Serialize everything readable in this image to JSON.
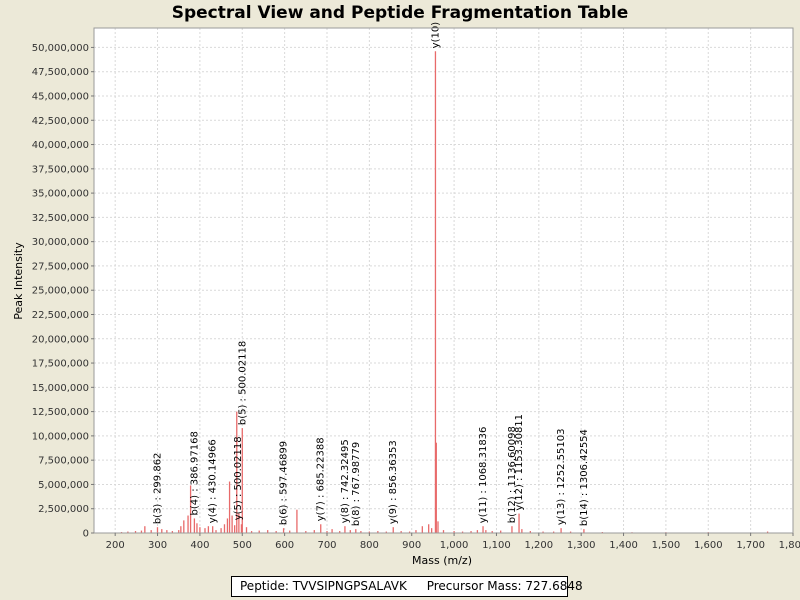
{
  "chart_data": {
    "type": "spectrum",
    "title": "Spectral View and Peptide Fragmentation Table",
    "xlabel": "Mass (m/z)",
    "ylabel": "Peak Intensity",
    "xlim": [
      150,
      1800
    ],
    "ylim": [
      0,
      52000000
    ],
    "grid": true,
    "series_color": "#e86a6a",
    "x_ticks": [
      {
        "value": 200,
        "label": "200"
      },
      {
        "value": 300,
        "label": "300"
      },
      {
        "value": 400,
        "label": "400"
      },
      {
        "value": 500,
        "label": "500"
      },
      {
        "value": 600,
        "label": "600"
      },
      {
        "value": 700,
        "label": "700"
      },
      {
        "value": 800,
        "label": "800"
      },
      {
        "value": 900,
        "label": "900"
      },
      {
        "value": 1000,
        "label": "1,000"
      },
      {
        "value": 1100,
        "label": "1,100"
      },
      {
        "value": 1200,
        "label": "1,200"
      },
      {
        "value": 1300,
        "label": "1,300"
      },
      {
        "value": 1400,
        "label": "1,400"
      },
      {
        "value": 1500,
        "label": "1,500"
      },
      {
        "value": 1600,
        "label": "1,600"
      },
      {
        "value": 1700,
        "label": "1,700"
      },
      {
        "value": 1800,
        "label": "1,800"
      }
    ],
    "y_ticks": [
      {
        "value": 0,
        "label": "0"
      },
      {
        "value": 2500000,
        "label": "2,500,000"
      },
      {
        "value": 5000000,
        "label": "5,000,000"
      },
      {
        "value": 7500000,
        "label": "7,500,000"
      },
      {
        "value": 10000000,
        "label": "10,000,000"
      },
      {
        "value": 12500000,
        "label": "12,500,000"
      },
      {
        "value": 15000000,
        "label": "15,000,000"
      },
      {
        "value": 17500000,
        "label": "17,500,000"
      },
      {
        "value": 20000000,
        "label": "20,000,000"
      },
      {
        "value": 22500000,
        "label": "22,500,000"
      },
      {
        "value": 25000000,
        "label": "25,000,000"
      },
      {
        "value": 27500000,
        "label": "27,500,000"
      },
      {
        "value": 30000000,
        "label": "30,000,000"
      },
      {
        "value": 32500000,
        "label": "32,500,000"
      },
      {
        "value": 35000000,
        "label": "35,000,000"
      },
      {
        "value": 37500000,
        "label": "37,500,000"
      },
      {
        "value": 40000000,
        "label": "40,000,000"
      },
      {
        "value": 42500000,
        "label": "42,500,000"
      },
      {
        "value": 45000000,
        "label": "45,000,000"
      },
      {
        "value": 47500000,
        "label": "47,500,000"
      },
      {
        "value": 50000000,
        "label": "50,000,000"
      }
    ],
    "peaks": [
      {
        "mz": 215,
        "intensity": 100000
      },
      {
        "mz": 230,
        "intensity": 150000
      },
      {
        "mz": 248,
        "intensity": 200000
      },
      {
        "mz": 262,
        "intensity": 250000
      },
      {
        "mz": 270,
        "intensity": 700000
      },
      {
        "mz": 285,
        "intensity": 300000
      },
      {
        "mz": 299.86,
        "intensity": 600000
      },
      {
        "mz": 310,
        "intensity": 400000
      },
      {
        "mz": 322,
        "intensity": 300000
      },
      {
        "mz": 335,
        "intensity": 200000
      },
      {
        "mz": 350,
        "intensity": 300000
      },
      {
        "mz": 355,
        "intensity": 700000
      },
      {
        "mz": 362,
        "intensity": 1300000
      },
      {
        "mz": 372,
        "intensity": 1800000
      },
      {
        "mz": 378,
        "intensity": 4900000
      },
      {
        "mz": 386.97,
        "intensity": 1500000
      },
      {
        "mz": 393,
        "intensity": 1000000
      },
      {
        "mz": 400,
        "intensity": 600000
      },
      {
        "mz": 412,
        "intensity": 500000
      },
      {
        "mz": 420,
        "intensity": 700000
      },
      {
        "mz": 430.15,
        "intensity": 700000
      },
      {
        "mz": 438,
        "intensity": 300000
      },
      {
        "mz": 450,
        "intensity": 500000
      },
      {
        "mz": 458,
        "intensity": 900000
      },
      {
        "mz": 465,
        "intensity": 1500000
      },
      {
        "mz": 470,
        "intensity": 5300000
      },
      {
        "mz": 476,
        "intensity": 1800000
      },
      {
        "mz": 482,
        "intensity": 800000
      },
      {
        "mz": 487,
        "intensity": 12500000
      },
      {
        "mz": 492,
        "intensity": 2000000
      },
      {
        "mz": 498,
        "intensity": 900000
      },
      {
        "mz": 500.02,
        "intensity": 10800000
      },
      {
        "mz": 510,
        "intensity": 600000
      },
      {
        "mz": 522,
        "intensity": 200000
      },
      {
        "mz": 540,
        "intensity": 250000
      },
      {
        "mz": 560,
        "intensity": 300000
      },
      {
        "mz": 580,
        "intensity": 200000
      },
      {
        "mz": 597.47,
        "intensity": 500000
      },
      {
        "mz": 612,
        "intensity": 250000
      },
      {
        "mz": 629,
        "intensity": 2400000
      },
      {
        "mz": 650,
        "intensity": 200000
      },
      {
        "mz": 670,
        "intensity": 300000
      },
      {
        "mz": 685.22,
        "intensity": 900000
      },
      {
        "mz": 700,
        "intensity": 200000
      },
      {
        "mz": 712,
        "intensity": 400000
      },
      {
        "mz": 730,
        "intensity": 200000
      },
      {
        "mz": 742.32,
        "intensity": 700000
      },
      {
        "mz": 755,
        "intensity": 300000
      },
      {
        "mz": 767.98,
        "intensity": 400000
      },
      {
        "mz": 780,
        "intensity": 200000
      },
      {
        "mz": 800,
        "intensity": 150000
      },
      {
        "mz": 820,
        "intensity": 200000
      },
      {
        "mz": 840,
        "intensity": 150000
      },
      {
        "mz": 856.36,
        "intensity": 600000
      },
      {
        "mz": 875,
        "intensity": 200000
      },
      {
        "mz": 895,
        "intensity": 150000
      },
      {
        "mz": 910,
        "intensity": 300000
      },
      {
        "mz": 925,
        "intensity": 700000
      },
      {
        "mz": 940,
        "intensity": 900000
      },
      {
        "mz": 947,
        "intensity": 500000
      },
      {
        "mz": 956,
        "intensity": 49600000
      },
      {
        "mz": 958,
        "intensity": 9300000
      },
      {
        "mz": 962,
        "intensity": 1200000
      },
      {
        "mz": 975,
        "intensity": 300000
      },
      {
        "mz": 1000,
        "intensity": 200000
      },
      {
        "mz": 1020,
        "intensity": 150000
      },
      {
        "mz": 1040,
        "intensity": 200000
      },
      {
        "mz": 1055,
        "intensity": 300000
      },
      {
        "mz": 1068.32,
        "intensity": 700000
      },
      {
        "mz": 1075,
        "intensity": 300000
      },
      {
        "mz": 1090,
        "intensity": 200000
      },
      {
        "mz": 1110,
        "intensity": 250000
      },
      {
        "mz": 1136.6,
        "intensity": 700000
      },
      {
        "mz": 1153.31,
        "intensity": 2000000
      },
      {
        "mz": 1160,
        "intensity": 400000
      },
      {
        "mz": 1180,
        "intensity": 200000
      },
      {
        "mz": 1210,
        "intensity": 150000
      },
      {
        "mz": 1235,
        "intensity": 150000
      },
      {
        "mz": 1252.55,
        "intensity": 500000
      },
      {
        "mz": 1275,
        "intensity": 150000
      },
      {
        "mz": 1306.43,
        "intensity": 400000
      },
      {
        "mz": 1350,
        "intensity": 100000
      },
      {
        "mz": 1420,
        "intensity": 80000
      },
      {
        "mz": 1500,
        "intensity": 80000
      },
      {
        "mz": 1600,
        "intensity": 80000
      },
      {
        "mz": 1740,
        "intensity": 150000
      }
    ],
    "annotations": [
      {
        "label": "b(3) : 299.862",
        "mz": 299.86,
        "intensity": 600000
      },
      {
        "label": "b(4) : 386.97168",
        "mz": 386.97,
        "intensity": 1500000
      },
      {
        "label": "y(4) : 430.14966",
        "mz": 430.15,
        "intensity": 700000
      },
      {
        "label": "y(5) : 500.02118",
        "mz": 490,
        "intensity": 1000000
      },
      {
        "label": "b(5) : 500.02118",
        "mz": 500.02,
        "intensity": 10800000
      },
      {
        "label": "b(6) : 597.46899",
        "mz": 597.47,
        "intensity": 500000
      },
      {
        "label": "y(7) : 685.22388",
        "mz": 685.22,
        "intensity": 900000
      },
      {
        "label": "y(8) : 742.32495",
        "mz": 742.32,
        "intensity": 700000
      },
      {
        "label": "b(8) : 767.98779",
        "mz": 767.98,
        "intensity": 400000
      },
      {
        "label": "y(9) : 856.36353",
        "mz": 856.36,
        "intensity": 600000
      },
      {
        "label": "y(10)",
        "mz": 956,
        "intensity": 49600000
      },
      {
        "label": "y(11) : 1068.31836",
        "mz": 1068.32,
        "intensity": 700000
      },
      {
        "label": "b(12) : 1136.60098",
        "mz": 1136.6,
        "intensity": 700000
      },
      {
        "label": "y(12) : 1153.30811",
        "mz": 1153.31,
        "intensity": 2000000
      },
      {
        "label": "y(13) : 1252.55103",
        "mz": 1252.55,
        "intensity": 500000
      },
      {
        "label": "b(14) : 1306.42554",
        "mz": 1306.43,
        "intensity": 400000
      }
    ]
  },
  "footer": {
    "peptide": "Peptide: TVVSIPNGPSALAVK",
    "precursor": "Precursor Mass: 727.6848"
  }
}
